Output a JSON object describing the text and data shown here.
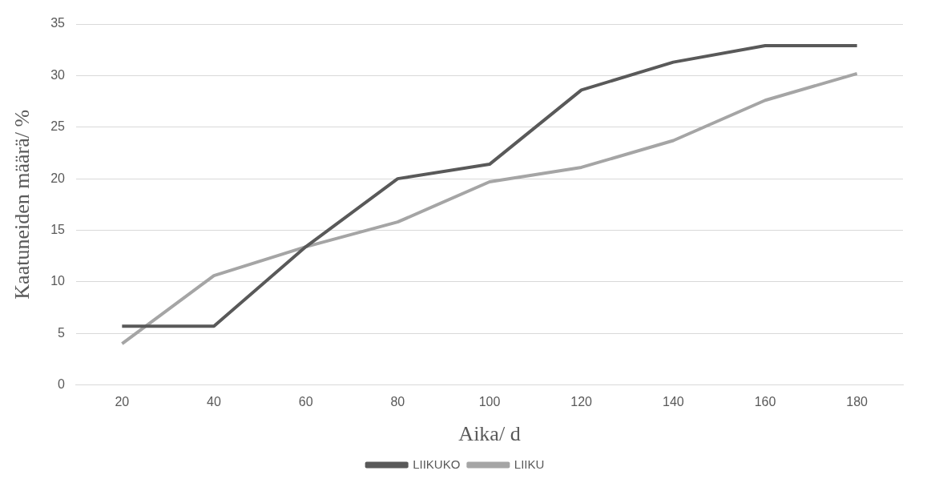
{
  "chart_data": {
    "type": "line",
    "xlabel": "Aika/ d",
    "ylabel": "Kaatuneiden määrä/ %",
    "categories": [
      "20",
      "40",
      "60",
      "80",
      "100",
      "120",
      "140",
      "160",
      "180"
    ],
    "series": [
      {
        "name": "LIIKUKO",
        "color": "#595959",
        "values": [
          5.7,
          5.7,
          13.4,
          20.0,
          21.4,
          28.6,
          31.3,
          32.9,
          32.9
        ]
      },
      {
        "name": "LIIKU",
        "color": "#a5a5a5",
        "values": [
          4.0,
          10.6,
          13.4,
          15.8,
          19.7,
          21.1,
          23.7,
          27.6,
          30.2
        ]
      }
    ],
    "ylim": [
      0,
      35
    ],
    "yticks": [
      0,
      5,
      10,
      15,
      20,
      25,
      30,
      35
    ],
    "grid": "y",
    "legend": "bottom",
    "marker": "none",
    "line_style": "solid"
  }
}
